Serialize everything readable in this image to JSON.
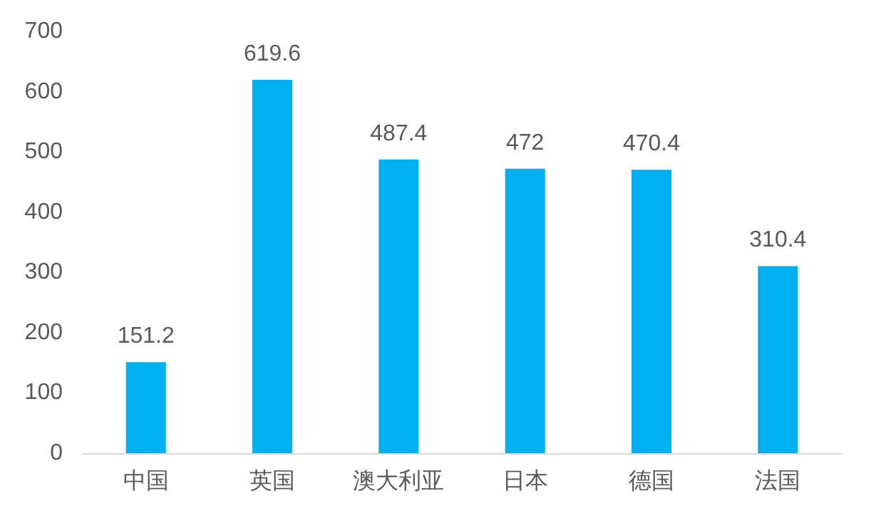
{
  "chart_data": {
    "type": "bar",
    "categories": [
      "中国",
      "英国",
      "澳大利亚",
      "日本",
      "德国",
      "法国"
    ],
    "values": [
      151.2,
      619.6,
      487.4,
      472,
      470.4,
      310.4
    ],
    "color": "#00b0f0",
    "data_labels": true,
    "ylim": [
      0,
      700
    ],
    "yticks": [
      0,
      100,
      200,
      300,
      400,
      500,
      600,
      700
    ],
    "grid": false
  }
}
